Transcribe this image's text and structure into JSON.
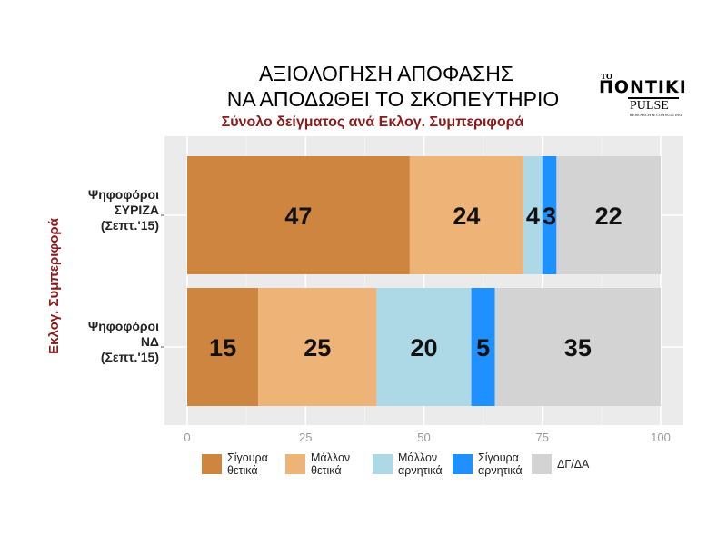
{
  "title_line1": "ΑΞΙΟΛΟΓΗΣΗ ΑΠΟΦΑΣΗΣ",
  "title_line2": "ΝΑ ΑΠΟΔΩΘΕΙ ΤΟ ΣΚΟΠΕΥΤΗΡΙΟ",
  "subtitle": "Σύνολο δείγματος ανά Εκλογ. Συμπεριφορά",
  "logo": {
    "top": "ΤΟ",
    "main": "ΠΟΝΤΙΚΙ",
    "pulse": "PULSE",
    "pulse_sub": "RESEARCH & CONSULTING"
  },
  "chart_data": {
    "type": "bar",
    "orientation": "horizontal",
    "stacked": true,
    "ylabel": "Εκλογ. Συμπεριφορά",
    "xlabel": "",
    "xlim": [
      0,
      100
    ],
    "xticks": [
      0,
      25,
      50,
      75,
      100
    ],
    "grid": true,
    "legend_position": "bottom",
    "categories": [
      [
        "Ψηφοφόροι",
        "ΣΥΡΙΖΑ",
        "(Σεπτ.'15)"
      ],
      [
        "Ψηφοφόροι",
        "ΝΔ",
        "(Σεπτ.'15)"
      ]
    ],
    "series": [
      {
        "name": "Σίγουρα θετικά",
        "label_lines": [
          "Σίγουρα",
          "θετικά"
        ],
        "color": "#cd853f",
        "values": [
          47,
          15
        ]
      },
      {
        "name": "Μάλλον θετικά",
        "label_lines": [
          "Μάλλον",
          "θετικά"
        ],
        "color": "#eeb477",
        "values": [
          24,
          25
        ]
      },
      {
        "name": "Μάλλον αρνητικά",
        "label_lines": [
          "Μάλλον",
          "αρνητικά"
        ],
        "color": "#add8e6",
        "values": [
          4,
          20
        ]
      },
      {
        "name": "Σίγουρα αρνητικά",
        "label_lines": [
          "Σίγουρα",
          "αρνητικά"
        ],
        "color": "#1e90ff",
        "values": [
          3,
          5
        ]
      },
      {
        "name": "ΔΓ/ΔΑ",
        "label_lines": [
          "ΔΓ/ΔΑ"
        ],
        "color": "#d3d3d3",
        "values": [
          22,
          35
        ]
      }
    ]
  }
}
